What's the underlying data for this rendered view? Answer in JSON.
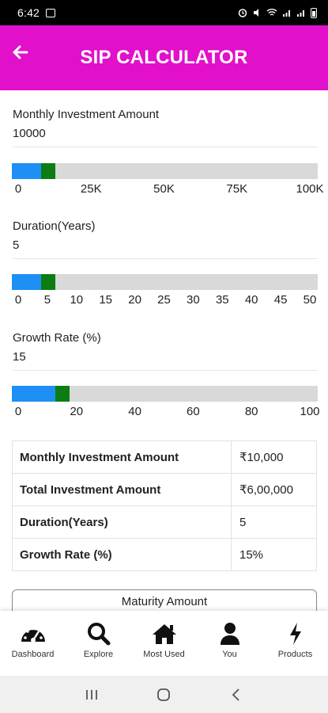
{
  "status_bar": {
    "time": "6:42"
  },
  "app_bar": {
    "title": "SIP CALCULATOR"
  },
  "investment": {
    "label": "Monthly Investment Amount",
    "value": "10000",
    "fill_fraction": 0.1,
    "ticks": [
      "0",
      "25K",
      "50K",
      "75K",
      "100K"
    ]
  },
  "duration": {
    "label": "Duration(Years)",
    "value": "5",
    "fill_fraction": 0.1,
    "ticks": [
      "0",
      "5",
      "10",
      "15",
      "20",
      "25",
      "30",
      "35",
      "40",
      "45",
      "50"
    ]
  },
  "growth": {
    "label": "Growth Rate (%)",
    "value": "15",
    "fill_fraction": 0.15,
    "ticks": [
      "0",
      "20",
      "40",
      "60",
      "80",
      "100"
    ]
  },
  "summary": {
    "rows": [
      {
        "label": "Monthly Investment Amount",
        "value": "₹10,000"
      },
      {
        "label": "Total Investment Amount",
        "value": "₹6,00,000"
      },
      {
        "label": "Duration(Years)",
        "value": "5"
      },
      {
        "label": "Growth Rate (%)",
        "value": "15%"
      }
    ]
  },
  "maturity_button": {
    "label": "Maturity Amount"
  },
  "bottom_nav": {
    "items": [
      {
        "label": "Dashboard",
        "icon": "dashboard-gauge-icon"
      },
      {
        "label": "Explore",
        "icon": "search-icon"
      },
      {
        "label": "Most Used",
        "icon": "home-icon"
      },
      {
        "label": "You",
        "icon": "user-icon"
      },
      {
        "label": "Products",
        "icon": "lightning-icon"
      }
    ]
  },
  "colors": {
    "app_bar": "#e20fcb",
    "slider_fill": "#1e8ff5",
    "slider_thumb": "#0b7d12",
    "slider_track": "#d9d9d9"
  }
}
